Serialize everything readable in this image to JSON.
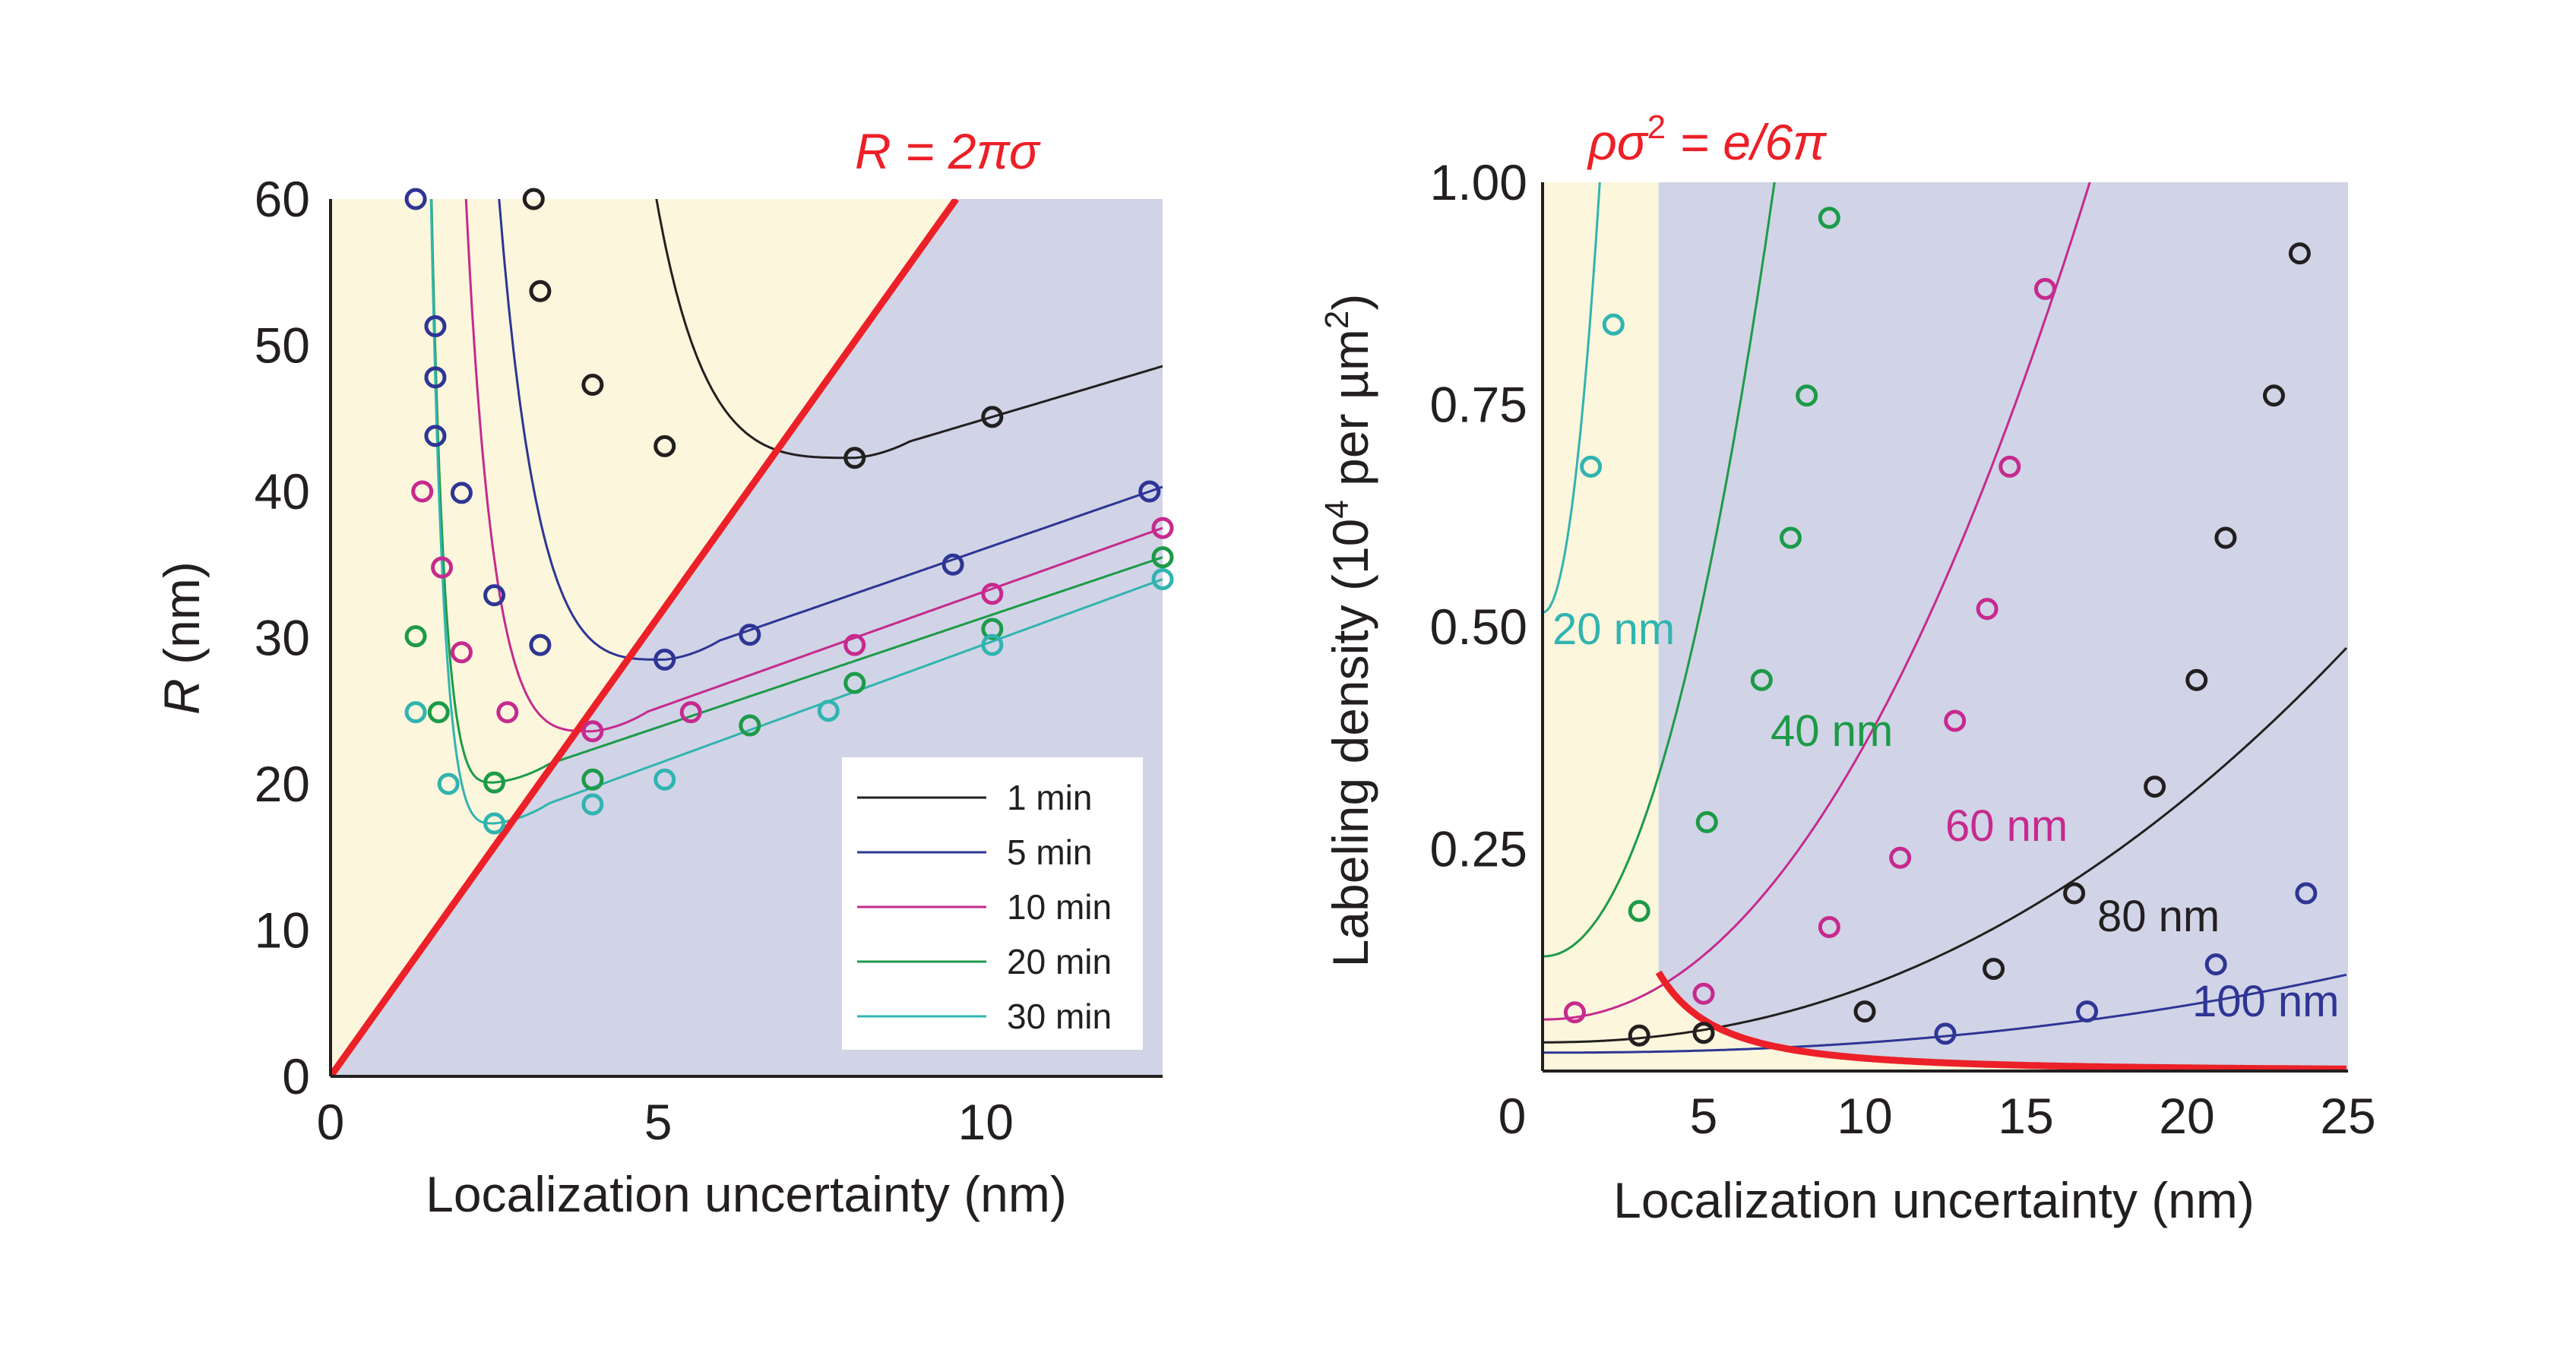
{
  "colors": {
    "region_low": "#fbf6dc",
    "region_high": "#d0d4e6",
    "boundary": "#ec2028",
    "black": "#231f20",
    "blue": "#2e3594",
    "magenta": "#c62a8e",
    "green": "#1d9a48",
    "cyan": "#31b4b0"
  },
  "chart_data": [
    {
      "type": "scatter",
      "title": "",
      "xlabel": "Localization uncertainty (nm)",
      "ylabel_italic": "R",
      "ylabel_rest": " (nm)",
      "xlim": [
        0,
        12.7
      ],
      "ylim": [
        0,
        60
      ],
      "xticks": [
        0,
        5,
        10
      ],
      "yticks": [
        0,
        10,
        20,
        30,
        40,
        50,
        60
      ],
      "grid": false,
      "legend_position": "bottom-right",
      "boundary": {
        "label": "R = 2πσ",
        "slope": 6.2832
      },
      "series": [
        {
          "name": "1 min",
          "color": "black",
          "x": [
            3.1,
            3.2,
            4.0,
            5.1,
            8.0,
            10.1
          ],
          "y": [
            60,
            53.7,
            47.3,
            43.1,
            42.3,
            45.1
          ],
          "fit": {
            "a": 2.3,
            "b": 3.12,
            "c": 0.9,
            "d": 4,
            "e": 3.65
          }
        },
        {
          "name": "5 min",
          "color": "blue",
          "x": [
            1.3,
            1.6,
            1.6,
            1.6,
            2.0,
            2.5,
            3.2,
            5.1,
            6.4,
            9.5,
            12.5
          ],
          "y": [
            60,
            51.3,
            47.8,
            43.8,
            39.9,
            32.9,
            29.5,
            28.5,
            30.2,
            35.0,
            40.0
          ],
          "fit": {
            "a": 3,
            "b": 1.12,
            "c": 0.5,
            "d": 2.2,
            "e": 3.4
          }
        },
        {
          "name": "10 min",
          "color": "magenta",
          "x": [
            1.4,
            1.7,
            2.0,
            2.7,
            4.0,
            5.5,
            8.0,
            10.1,
            12.7
          ],
          "y": [
            40.0,
            34.8,
            29.0,
            24.9,
            23.6,
            24.9,
            29.5,
            33.0,
            37.5
          ],
          "fit": {
            "a": 2.2,
            "b": 0.92,
            "c": 0.5,
            "d": 1.6,
            "e": 3.1
          }
        },
        {
          "name": "20 min",
          "color": "green",
          "x": [
            1.3,
            1.65,
            2.5,
            4.0,
            6.4,
            8.0,
            10.1,
            12.7
          ],
          "y": [
            30.1,
            24.9,
            20.1,
            20.3,
            24.0,
            26.9,
            30.6,
            35.5
          ],
          "fit": {
            "a": 1.3,
            "b": 0.92,
            "c": 0.45,
            "d": 0.9,
            "e": 3.1
          }
        },
        {
          "name": "30 min",
          "color": "cyan",
          "x": [
            1.3,
            1.8,
            2.5,
            4.0,
            5.1,
            7.6,
            10.1,
            12.7
          ],
          "y": [
            24.9,
            20.0,
            17.3,
            18.6,
            20.3,
            25.0,
            29.5,
            34.0
          ],
          "fit": {
            "a": 0.6,
            "b": 0.95,
            "c": 0.5,
            "d": 0.5,
            "e": 3.05
          }
        }
      ]
    },
    {
      "type": "scatter",
      "title": "",
      "xlabel": "Localization uncertainty (nm)",
      "ylabel_main": "Labeling density (10",
      "ylabel_sup1": "4",
      "ylabel_mid": " per µm",
      "ylabel_sup2": "2",
      "ylabel_end": ")",
      "xlim": [
        0,
        25
      ],
      "ylim": [
        0,
        1.0
      ],
      "xticks": [
        0,
        5,
        10,
        15,
        20,
        25
      ],
      "yticks": [
        0.25,
        0.5,
        0.75,
        1.0
      ],
      "ytick_labels": [
        "0.25",
        "0.50",
        "0.75",
        "1.00"
      ],
      "grid": false,
      "boundary": {
        "label_rho": "ρσ",
        "label_sup": "2",
        "label_rest": " = e/6π",
        "constant": 0.0144
      },
      "series": [
        {
          "name": "20 nm",
          "color": "cyan",
          "x": [
            1.5,
            2.2
          ],
          "y": [
            0.68,
            0.84
          ],
          "fit": {
            "A": 0.516,
            "k": 0.145,
            "p": 2.1
          }
        },
        {
          "name": "40 nm",
          "color": "green",
          "x": [
            3.0,
            5.1,
            6.8,
            7.7,
            8.2,
            8.9
          ],
          "y": [
            0.18,
            0.28,
            0.44,
            0.6,
            0.76,
            0.96
          ],
          "fit": {
            "A": 0.129,
            "k": 0.0138,
            "p": 2.1
          }
        },
        {
          "name": "60 nm",
          "color": "magenta",
          "x": [
            1.0,
            5.0,
            8.9,
            11.1,
            12.8,
            13.8,
            14.5,
            15.6
          ],
          "y": [
            0.066,
            0.087,
            0.162,
            0.24,
            0.394,
            0.52,
            0.68,
            0.88
          ],
          "fit": {
            "A": 0.058,
            "k": 0.00246,
            "p": 2.1
          }
        },
        {
          "name": "80 nm",
          "color": "black",
          "x": [
            3.0,
            5.0,
            10.0,
            14.0,
            16.5,
            19.0,
            20.3,
            21.2,
            22.7,
            23.5
          ],
          "y": [
            0.04,
            0.043,
            0.067,
            0.115,
            0.2,
            0.32,
            0.44,
            0.6,
            0.76,
            0.92
          ],
          "fit": {
            "A": 0.0323,
            "k": 0.00044,
            "p": 2.15
          }
        },
        {
          "name": "100 nm",
          "color": "blue",
          "x": [
            12.5,
            16.9,
            20.9,
            23.7
          ],
          "y": [
            0.042,
            0.067,
            0.12,
            0.2
          ],
          "fit": {
            "A": 0.0207,
            "k": 6.3e-05,
            "p": 2.25
          }
        }
      ]
    }
  ]
}
